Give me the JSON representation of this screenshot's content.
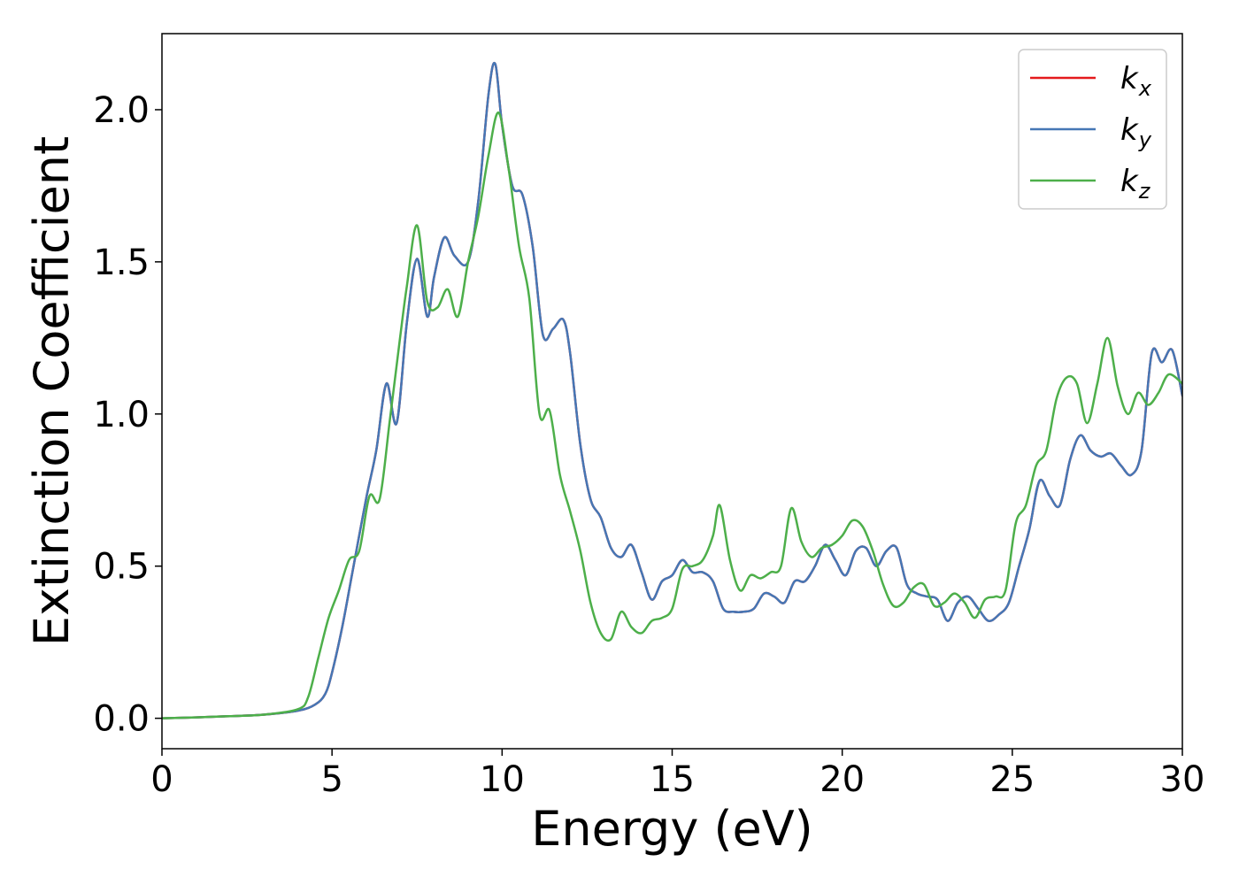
{
  "chart_data": {
    "type": "line",
    "title": "",
    "xlabel": "Energy (eV)",
    "ylabel": "Extinction Coefficient",
    "xlim": [
      0,
      30
    ],
    "ylim": [
      -0.1,
      2.25
    ],
    "xticks": [
      0,
      5,
      10,
      15,
      20,
      25,
      30
    ],
    "xtick_labels": [
      "0",
      "5",
      "10",
      "15",
      "20",
      "25",
      "30"
    ],
    "yticks": [
      0.0,
      0.5,
      1.0,
      1.5,
      2.0
    ],
    "ytick_labels": [
      "0.0",
      "0.5",
      "1.0",
      "1.5",
      "2.0"
    ],
    "grid": false,
    "legend_position": "top-right",
    "series": [
      {
        "name": "k_x",
        "legend_base": "k",
        "legend_sub": "x",
        "color": "#e41a1c",
        "x": [
          0,
          1,
          2,
          3,
          4,
          4.5,
          4.8,
          5,
          5.3,
          5.6,
          6,
          6.3,
          6.6,
          6.9,
          7.2,
          7.5,
          7.8,
          8,
          8.3,
          8.6,
          9,
          9.3,
          9.6,
          9.8,
          10,
          10.3,
          10.6,
          10.9,
          11.2,
          11.5,
          11.8,
          12,
          12.3,
          12.6,
          12.9,
          13.2,
          13.5,
          13.8,
          14.1,
          14.4,
          14.7,
          15,
          15.3,
          15.6,
          15.9,
          16.2,
          16.5,
          16.8,
          17.1,
          17.4,
          17.7,
          18,
          18.3,
          18.6,
          18.9,
          19.2,
          19.5,
          19.8,
          20.1,
          20.4,
          20.7,
          21,
          21.3,
          21.6,
          21.9,
          22.2,
          22.5,
          22.8,
          23.1,
          23.4,
          23.7,
          24,
          24.3,
          24.6,
          24.9,
          25.2,
          25.5,
          25.8,
          26.1,
          26.4,
          26.7,
          27,
          27.3,
          27.6,
          27.9,
          28.2,
          28.5,
          28.8,
          29.1,
          29.4,
          29.7,
          30
        ],
        "values": [
          0.0,
          0.003,
          0.007,
          0.012,
          0.025,
          0.045,
          0.08,
          0.15,
          0.3,
          0.48,
          0.72,
          0.88,
          1.1,
          0.97,
          1.3,
          1.51,
          1.32,
          1.45,
          1.58,
          1.52,
          1.5,
          1.7,
          2.05,
          2.15,
          1.95,
          1.75,
          1.72,
          1.55,
          1.26,
          1.28,
          1.31,
          1.2,
          0.9,
          0.72,
          0.66,
          0.56,
          0.53,
          0.57,
          0.48,
          0.39,
          0.45,
          0.47,
          0.52,
          0.48,
          0.48,
          0.45,
          0.36,
          0.35,
          0.35,
          0.36,
          0.41,
          0.4,
          0.38,
          0.45,
          0.45,
          0.5,
          0.57,
          0.52,
          0.47,
          0.55,
          0.56,
          0.5,
          0.55,
          0.56,
          0.44,
          0.41,
          0.4,
          0.39,
          0.32,
          0.38,
          0.4,
          0.36,
          0.32,
          0.34,
          0.38,
          0.5,
          0.62,
          0.78,
          0.73,
          0.7,
          0.85,
          0.93,
          0.88,
          0.86,
          0.87,
          0.83,
          0.8,
          0.88,
          1.2,
          1.17,
          1.21,
          1.06
        ]
      },
      {
        "name": "k_y",
        "legend_base": "k",
        "legend_sub": "y",
        "color": "#4577b5",
        "x": [
          0,
          1,
          2,
          3,
          4,
          4.5,
          4.8,
          5,
          5.3,
          5.6,
          6,
          6.3,
          6.6,
          6.9,
          7.2,
          7.5,
          7.8,
          8,
          8.3,
          8.6,
          9,
          9.3,
          9.6,
          9.8,
          10,
          10.3,
          10.6,
          10.9,
          11.2,
          11.5,
          11.8,
          12,
          12.3,
          12.6,
          12.9,
          13.2,
          13.5,
          13.8,
          14.1,
          14.4,
          14.7,
          15,
          15.3,
          15.6,
          15.9,
          16.2,
          16.5,
          16.8,
          17.1,
          17.4,
          17.7,
          18,
          18.3,
          18.6,
          18.9,
          19.2,
          19.5,
          19.8,
          20.1,
          20.4,
          20.7,
          21,
          21.3,
          21.6,
          21.9,
          22.2,
          22.5,
          22.8,
          23.1,
          23.4,
          23.7,
          24,
          24.3,
          24.6,
          24.9,
          25.2,
          25.5,
          25.8,
          26.1,
          26.4,
          26.7,
          27,
          27.3,
          27.6,
          27.9,
          28.2,
          28.5,
          28.8,
          29.1,
          29.4,
          29.7,
          30
        ],
        "values": [
          0.0,
          0.003,
          0.007,
          0.012,
          0.025,
          0.045,
          0.08,
          0.15,
          0.3,
          0.48,
          0.72,
          0.88,
          1.1,
          0.97,
          1.3,
          1.51,
          1.32,
          1.45,
          1.58,
          1.52,
          1.5,
          1.7,
          2.05,
          2.15,
          1.95,
          1.75,
          1.72,
          1.55,
          1.26,
          1.28,
          1.31,
          1.2,
          0.9,
          0.72,
          0.66,
          0.56,
          0.53,
          0.57,
          0.48,
          0.39,
          0.45,
          0.47,
          0.52,
          0.48,
          0.48,
          0.45,
          0.36,
          0.35,
          0.35,
          0.36,
          0.41,
          0.4,
          0.38,
          0.45,
          0.45,
          0.5,
          0.57,
          0.52,
          0.47,
          0.55,
          0.56,
          0.5,
          0.55,
          0.56,
          0.44,
          0.41,
          0.4,
          0.39,
          0.32,
          0.38,
          0.4,
          0.36,
          0.32,
          0.34,
          0.38,
          0.5,
          0.62,
          0.78,
          0.73,
          0.7,
          0.85,
          0.93,
          0.88,
          0.86,
          0.87,
          0.83,
          0.8,
          0.88,
          1.2,
          1.17,
          1.21,
          1.06
        ]
      },
      {
        "name": "k_z",
        "legend_base": "k",
        "legend_sub": "z",
        "color": "#4daf4a",
        "x": [
          0,
          1,
          2,
          3,
          4,
          4.3,
          4.6,
          4.9,
          5.2,
          5.5,
          5.8,
          6.1,
          6.4,
          6.7,
          7,
          7.2,
          7.5,
          7.8,
          8.1,
          8.4,
          8.7,
          9,
          9.3,
          9.6,
          9.9,
          10.2,
          10.5,
          10.8,
          11.1,
          11.4,
          11.7,
          12,
          12.3,
          12.6,
          12.9,
          13.2,
          13.5,
          13.8,
          14.1,
          14.4,
          14.7,
          15,
          15.3,
          15.6,
          15.9,
          16.2,
          16.4,
          16.7,
          17,
          17.3,
          17.6,
          17.9,
          18.2,
          18.5,
          18.8,
          19.1,
          19.4,
          19.7,
          20,
          20.3,
          20.6,
          20.9,
          21.2,
          21.5,
          21.8,
          22.1,
          22.4,
          22.7,
          23,
          23.3,
          23.6,
          23.9,
          24.2,
          24.5,
          24.8,
          25.1,
          25.4,
          25.7,
          26,
          26.3,
          26.6,
          26.9,
          27.2,
          27.5,
          27.8,
          28.1,
          28.4,
          28.7,
          29,
          29.3,
          29.6,
          30
        ],
        "values": [
          0.0,
          0.003,
          0.007,
          0.012,
          0.03,
          0.07,
          0.2,
          0.33,
          0.42,
          0.52,
          0.55,
          0.73,
          0.72,
          0.98,
          1.25,
          1.42,
          1.62,
          1.37,
          1.35,
          1.41,
          1.32,
          1.5,
          1.65,
          1.85,
          1.99,
          1.8,
          1.55,
          1.38,
          1.0,
          1.01,
          0.8,
          0.68,
          0.55,
          0.38,
          0.28,
          0.26,
          0.35,
          0.3,
          0.28,
          0.32,
          0.33,
          0.36,
          0.49,
          0.5,
          0.52,
          0.6,
          0.7,
          0.52,
          0.42,
          0.47,
          0.46,
          0.48,
          0.5,
          0.69,
          0.58,
          0.53,
          0.56,
          0.57,
          0.6,
          0.65,
          0.63,
          0.55,
          0.44,
          0.37,
          0.38,
          0.43,
          0.44,
          0.37,
          0.38,
          0.41,
          0.38,
          0.33,
          0.39,
          0.4,
          0.42,
          0.64,
          0.7,
          0.83,
          0.88,
          1.05,
          1.12,
          1.1,
          0.97,
          1.1,
          1.25,
          1.09,
          1.0,
          1.07,
          1.03,
          1.07,
          1.13,
          1.1
        ]
      }
    ]
  }
}
